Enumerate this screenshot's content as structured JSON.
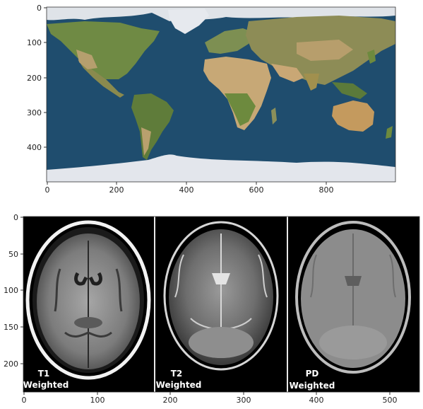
{
  "figure": {
    "panels": [
      {
        "name": "world-map-image",
        "image_description_name": "earth-satellite-map",
        "x_ticks": [
          "0",
          "200",
          "400",
          "600",
          "800"
        ],
        "y_ticks": [
          "0",
          "100",
          "200",
          "300",
          "400"
        ]
      },
      {
        "name": "mri-comparison-image",
        "x_ticks": [
          "0",
          "100",
          "200",
          "300",
          "400",
          "500"
        ],
        "y_ticks": [
          "0",
          "50",
          "100",
          "150",
          "200"
        ],
        "scans": [
          {
            "label_line1": "T1",
            "label_line2": "Weighted"
          },
          {
            "label_line1": "T2",
            "label_line2": "Weighted"
          },
          {
            "label_line1": "PD",
            "label_line2": "Weighted"
          }
        ]
      }
    ]
  },
  "colors": {
    "ocean": "#1f4d6e",
    "ice": "#e6e9ee",
    "land_green": "#5d7a3c",
    "land_desert": "#c6a676",
    "mri_background": "#000000",
    "mri_tissue": "#8a8a8a"
  }
}
